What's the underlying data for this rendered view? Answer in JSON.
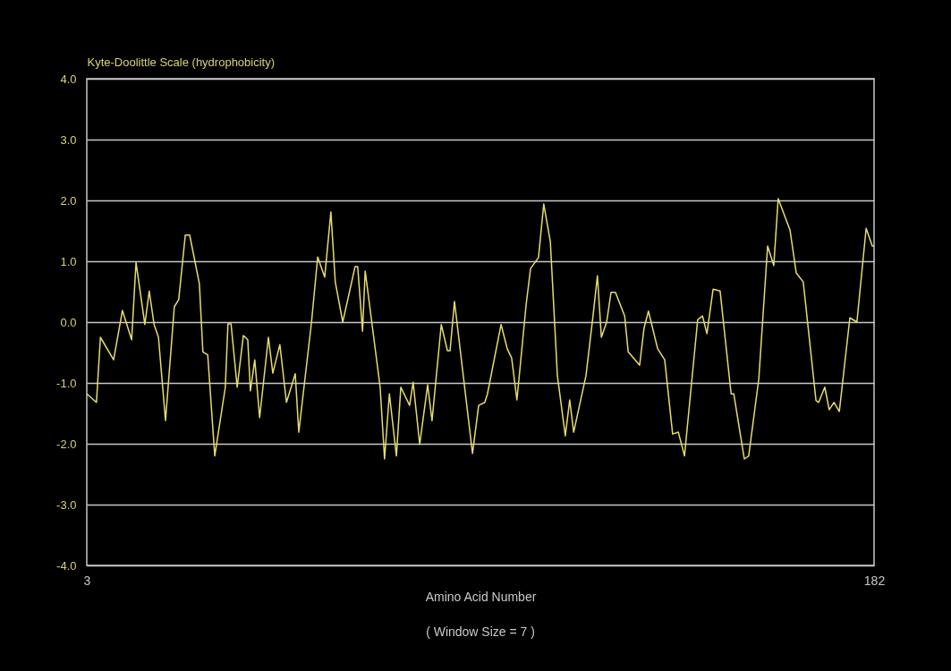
{
  "chart_data": {
    "type": "line",
    "ylabel": "Kyte-Doolittle Scale (hydrophobicity)",
    "xlabel": "Amino Acid Number",
    "annotations": [
      "( Window Size = 7 )"
    ],
    "xlim": [
      3,
      182
    ],
    "xticks": [
      3,
      182
    ],
    "ylim": [
      -4,
      4
    ],
    "yticks": [
      {
        "value": -4,
        "label": "-4.0"
      },
      {
        "value": -3,
        "label": "-3.0"
      },
      {
        "value": -2,
        "label": "-2.0"
      },
      {
        "value": -1,
        "label": "-1.0"
      },
      {
        "value": 0,
        "label": "0.0"
      },
      {
        "value": 1,
        "label": "1.0"
      },
      {
        "value": 2,
        "label": "2.0"
      },
      {
        "value": 3,
        "label": "3.0"
      },
      {
        "value": 4,
        "label": "4.0"
      }
    ],
    "grid": "y",
    "marker": "none",
    "line_style": "solid",
    "series": [
      {
        "color": "#e6dc6e",
        "x": [
          3.0,
          5.2,
          6.1,
          9.1,
          11.1,
          13.2,
          14.2,
          16.2,
          17.2,
          18.3,
          19.3,
          20.9,
          22.9,
          23.9,
          25.4,
          26.4,
          28.6,
          29.4,
          30.5,
          32.1,
          34.5,
          35.1,
          35.8,
          37.2,
          38.6,
          39.6,
          40.2,
          41.2,
          42.3,
          44.3,
          45.3,
          46.9,
          48.4,
          50.4,
          51.2,
          54.1,
          55.5,
          57.1,
          58.5,
          59.5,
          61.2,
          64.0,
          64.6,
          65.7,
          66.3,
          69.7,
          70.7,
          71.8,
          73.4,
          74.4,
          76.4,
          77.2,
          78.7,
          80.5,
          81.5,
          83.6,
          85.0,
          85.6,
          86.6,
          88.6,
          90.7,
          92.1,
          93.5,
          94.1,
          97.2,
          98.6,
          99.6,
          100.8,
          102.9,
          103.9,
          105.7,
          106.9,
          108.4,
          110.0,
          111.8,
          112.8,
          113.7,
          116.5,
          118.1,
          119.1,
          120.0,
          121.2,
          122.2,
          123.2,
          125.3,
          126.1,
          128.7,
          129.7,
          130.7,
          132.8,
          134.4,
          136.2,
          137.5,
          138.9,
          141.9,
          143.0,
          144.0,
          145.4,
          147.0,
          149.5,
          150.1,
          152.5,
          153.5,
          155.8,
          157.8,
          159.2,
          160.2,
          162.9,
          164.3,
          165.9,
          168.8,
          169.4,
          170.8,
          171.8,
          172.9,
          174.1,
          176.5,
          178.1,
          180.2,
          181.6,
          182.0
        ],
        "values": [
          -1.18,
          -1.32,
          -0.25,
          -0.62,
          0.19,
          -0.29,
          0.98,
          -0.04,
          0.51,
          -0.04,
          -0.25,
          -1.62,
          0.25,
          0.37,
          1.43,
          1.43,
          0.63,
          -0.49,
          -0.54,
          -2.2,
          -1.07,
          -0.03,
          -0.03,
          -1.07,
          -0.22,
          -0.29,
          -1.13,
          -0.62,
          -1.57,
          -0.25,
          -0.84,
          -0.37,
          -1.32,
          -0.85,
          -1.81,
          0.0,
          1.07,
          0.74,
          1.81,
          0.66,
          0.0,
          0.91,
          0.91,
          -0.15,
          0.84,
          -1.07,
          -2.25,
          -1.18,
          -2.2,
          -1.07,
          -1.37,
          -0.99,
          -2.01,
          -1.03,
          -1.62,
          -0.04,
          -0.47,
          -0.47,
          0.34,
          -0.88,
          -2.16,
          -1.37,
          -1.32,
          -1.18,
          -0.04,
          -0.44,
          -0.59,
          -1.28,
          0.29,
          0.88,
          1.06,
          1.94,
          1.32,
          -0.88,
          -1.87,
          -1.28,
          -1.81,
          -0.88,
          0.1,
          0.76,
          -0.25,
          0.0,
          0.49,
          0.49,
          0.1,
          -0.49,
          -0.71,
          -0.1,
          0.18,
          -0.44,
          -0.62,
          -1.84,
          -1.81,
          -2.2,
          0.04,
          0.1,
          -0.19,
          0.54,
          0.51,
          -1.18,
          -1.18,
          -2.25,
          -2.2,
          -0.93,
          1.25,
          0.93,
          2.03,
          1.51,
          0.81,
          0.66,
          -1.29,
          -1.32,
          -1.07,
          -1.44,
          -1.32,
          -1.47,
          0.07,
          0.0,
          1.54,
          1.25,
          1.25
        ]
      }
    ]
  }
}
